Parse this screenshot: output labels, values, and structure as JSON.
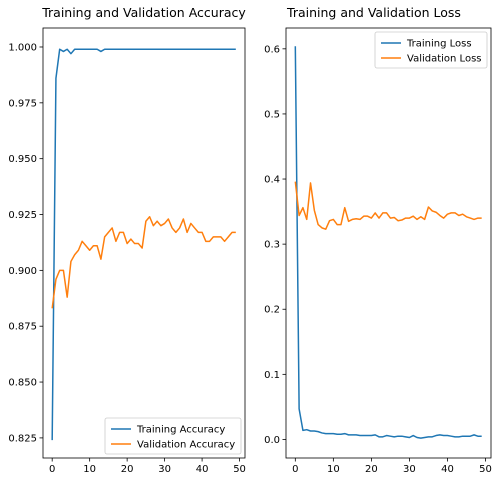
{
  "chart_data": [
    {
      "type": "line",
      "title": "Training and Validation Accuracy",
      "xlabel": "",
      "ylabel": "",
      "xlim": [
        -2.45,
        51.45
      ],
      "ylim": [
        0.816,
        1.0085
      ],
      "xticks": [
        0,
        10,
        20,
        30,
        40,
        50
      ],
      "xtick_labels": [
        "0",
        "10",
        "20",
        "30",
        "40",
        "50"
      ],
      "yticks": [
        0.825,
        0.85,
        0.875,
        0.9,
        0.925,
        0.95,
        0.975,
        1.0
      ],
      "ytick_labels": [
        "0.825",
        "0.850",
        "0.875",
        "0.900",
        "0.925",
        "0.950",
        "0.975",
        "1.000"
      ],
      "grid": false,
      "legend_position": "lower-right",
      "series": [
        {
          "name": "Training Accuracy",
          "color": "#1f77b4",
          "x": [
            0,
            1,
            2,
            3,
            4,
            5,
            6,
            7,
            8,
            9,
            10,
            11,
            12,
            13,
            14,
            15,
            16,
            17,
            18,
            19,
            20,
            21,
            22,
            23,
            24,
            25,
            26,
            27,
            28,
            29,
            30,
            31,
            32,
            33,
            34,
            35,
            36,
            37,
            38,
            39,
            40,
            41,
            42,
            43,
            44,
            45,
            46,
            47,
            48,
            49
          ],
          "y": [
            0.824,
            0.986,
            0.999,
            0.998,
            0.999,
            0.997,
            0.999,
            0.999,
            0.999,
            0.999,
            0.999,
            0.999,
            0.999,
            0.998,
            0.999,
            0.999,
            0.999,
            0.999,
            0.999,
            0.999,
            0.999,
            0.999,
            0.999,
            0.999,
            0.999,
            0.999,
            0.999,
            0.999,
            0.999,
            0.999,
            0.999,
            0.999,
            0.999,
            0.999,
            0.999,
            0.999,
            0.999,
            0.999,
            0.999,
            0.999,
            0.999,
            0.999,
            0.999,
            0.999,
            0.999,
            0.999,
            0.999,
            0.999,
            0.999,
            0.999
          ]
        },
        {
          "name": "Validation Accuracy",
          "color": "#ff7f0e",
          "x": [
            0,
            1,
            2,
            3,
            4,
            5,
            6,
            7,
            8,
            9,
            10,
            11,
            12,
            13,
            14,
            15,
            16,
            17,
            18,
            19,
            20,
            21,
            22,
            23,
            24,
            25,
            26,
            27,
            28,
            29,
            30,
            31,
            32,
            33,
            34,
            35,
            36,
            37,
            38,
            39,
            40,
            41,
            42,
            43,
            44,
            45,
            46,
            47,
            48,
            49
          ],
          "y": [
            0.883,
            0.896,
            0.9,
            0.9,
            0.888,
            0.904,
            0.907,
            0.909,
            0.913,
            0.911,
            0.909,
            0.911,
            0.911,
            0.905,
            0.915,
            0.917,
            0.919,
            0.913,
            0.917,
            0.917,
            0.912,
            0.914,
            0.912,
            0.912,
            0.91,
            0.922,
            0.924,
            0.92,
            0.922,
            0.92,
            0.921,
            0.923,
            0.919,
            0.917,
            0.919,
            0.923,
            0.917,
            0.921,
            0.919,
            0.917,
            0.917,
            0.913,
            0.913,
            0.915,
            0.915,
            0.915,
            0.913,
            0.915,
            0.917,
            0.917
          ]
        }
      ]
    },
    {
      "type": "line",
      "title": "Training and Validation Loss",
      "xlabel": "",
      "ylabel": "",
      "xlim": [
        -2.45,
        51.45
      ],
      "ylim": [
        -0.0285,
        0.632
      ],
      "xticks": [
        0,
        10,
        20,
        30,
        40,
        50
      ],
      "xtick_labels": [
        "0",
        "10",
        "20",
        "30",
        "40",
        "50"
      ],
      "yticks": [
        0.0,
        0.1,
        0.2,
        0.3,
        0.4,
        0.5,
        0.6
      ],
      "ytick_labels": [
        "0.0",
        "0.1",
        "0.2",
        "0.3",
        "0.4",
        "0.5",
        "0.6"
      ],
      "grid": false,
      "legend_position": "upper-right",
      "series": [
        {
          "name": "Training Loss",
          "color": "#1f77b4",
          "x": [
            0,
            1,
            2,
            3,
            4,
            5,
            6,
            7,
            8,
            9,
            10,
            11,
            12,
            13,
            14,
            15,
            16,
            17,
            18,
            19,
            20,
            21,
            22,
            23,
            24,
            25,
            26,
            27,
            28,
            29,
            30,
            31,
            32,
            33,
            34,
            35,
            36,
            37,
            38,
            39,
            40,
            41,
            42,
            43,
            44,
            45,
            46,
            47,
            48,
            49
          ],
          "y": [
            0.604,
            0.047,
            0.014,
            0.015,
            0.013,
            0.013,
            0.012,
            0.01,
            0.009,
            0.009,
            0.009,
            0.008,
            0.008,
            0.009,
            0.007,
            0.007,
            0.007,
            0.006,
            0.006,
            0.006,
            0.006,
            0.007,
            0.004,
            0.004,
            0.006,
            0.005,
            0.004,
            0.005,
            0.005,
            0.004,
            0.003,
            0.006,
            0.003,
            0.002,
            0.003,
            0.004,
            0.004,
            0.006,
            0.007,
            0.006,
            0.006,
            0.005,
            0.004,
            0.004,
            0.005,
            0.005,
            0.005,
            0.007,
            0.005,
            0.005
          ]
        },
        {
          "name": "Validation Loss",
          "color": "#ff7f0e",
          "x": [
            0,
            1,
            2,
            3,
            4,
            5,
            6,
            7,
            8,
            9,
            10,
            11,
            12,
            13,
            14,
            15,
            16,
            17,
            18,
            19,
            20,
            21,
            22,
            23,
            24,
            25,
            26,
            27,
            28,
            29,
            30,
            31,
            32,
            33,
            34,
            35,
            36,
            37,
            38,
            39,
            40,
            41,
            42,
            43,
            44,
            45,
            46,
            47,
            48,
            49
          ],
          "y": [
            0.396,
            0.344,
            0.356,
            0.338,
            0.394,
            0.352,
            0.33,
            0.325,
            0.323,
            0.336,
            0.338,
            0.33,
            0.33,
            0.356,
            0.335,
            0.338,
            0.339,
            0.338,
            0.343,
            0.343,
            0.34,
            0.348,
            0.34,
            0.348,
            0.348,
            0.34,
            0.341,
            0.336,
            0.337,
            0.34,
            0.34,
            0.343,
            0.338,
            0.342,
            0.338,
            0.357,
            0.351,
            0.349,
            0.344,
            0.34,
            0.346,
            0.348,
            0.348,
            0.344,
            0.346,
            0.342,
            0.34,
            0.338,
            0.34,
            0.34
          ]
        }
      ]
    }
  ]
}
